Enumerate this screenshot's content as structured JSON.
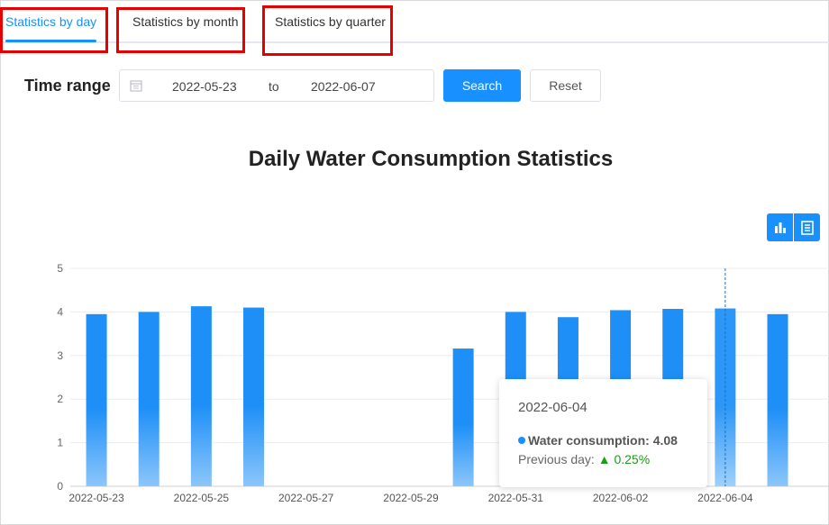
{
  "tabs": [
    {
      "label": "Statistics by day",
      "active": true
    },
    {
      "label": "Statistics by month",
      "active": false
    },
    {
      "label": "Statistics by quarter",
      "active": false
    }
  ],
  "filter": {
    "label": "Time range",
    "start_date": "2022-05-23",
    "separator": "to",
    "end_date": "2022-06-07",
    "search_label": "Search",
    "reset_label": "Reset"
  },
  "toolbox": {
    "bar_icon": "bar-chart-icon",
    "data_view_icon": "data-view-icon"
  },
  "colors": {
    "accent": "#1890ff",
    "bar_top": "#1e8ff7",
    "bar_bottom": "#8cc6fb",
    "highlight": "#e60000",
    "up": "#1a9b1a"
  },
  "chart_data": {
    "type": "bar",
    "title": "Daily Water Consumption Statistics",
    "categories": [
      "2022-05-23",
      "2022-05-24",
      "2022-05-25",
      "2022-05-26",
      "2022-05-27",
      "2022-05-28",
      "2022-05-29",
      "2022-05-30",
      "2022-05-31",
      "2022-06-01",
      "2022-06-02",
      "2022-06-03",
      "2022-06-04",
      "2022-06-05"
    ],
    "x_tick_labels": [
      "2022-05-23",
      "2022-05-25",
      "2022-05-27",
      "2022-05-29",
      "2022-05-31",
      "2022-06-02",
      "2022-06-04"
    ],
    "series": [
      {
        "name": "Water consumption",
        "values": [
          3.95,
          4.0,
          4.13,
          4.1,
          null,
          null,
          null,
          3.16,
          4.0,
          3.88,
          4.04,
          4.07,
          4.08,
          3.95
        ]
      }
    ],
    "ylim": [
      0,
      5
    ],
    "yticks": [
      0,
      1,
      2,
      3,
      4,
      5
    ],
    "grid": true,
    "tooltip": {
      "date": "2022-06-04",
      "series_label": "Water consumption:",
      "value": "4.08",
      "prev_label": "Previous day:",
      "prev_change": "▲ 0.25%"
    }
  }
}
